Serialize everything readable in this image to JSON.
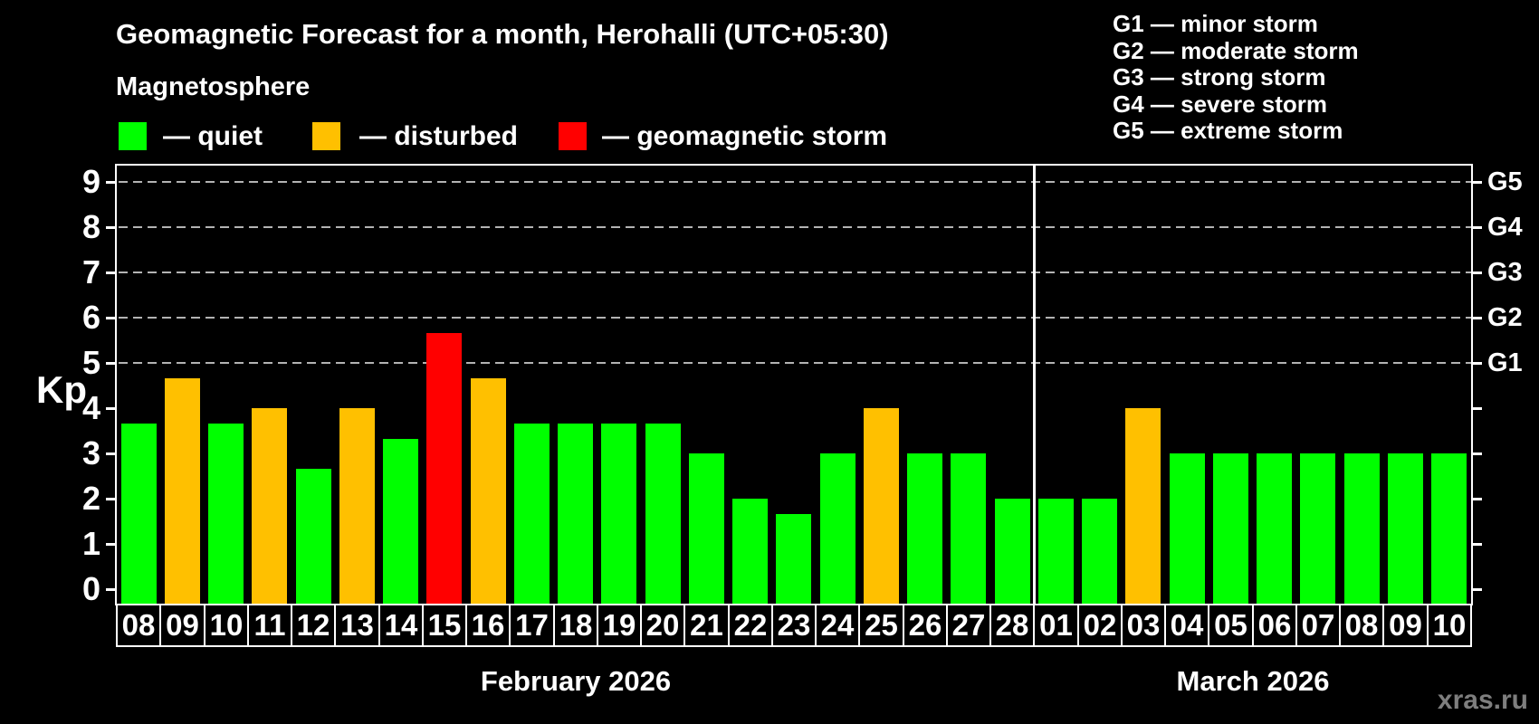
{
  "header": {
    "title": "Geomagnetic Forecast for a month, Herohalli (UTC+05:30)",
    "subtitle": "Magnetosphere"
  },
  "legend": {
    "items": [
      {
        "key": "quiet",
        "label": "— quiet",
        "color": "#00ff00"
      },
      {
        "key": "disturbed",
        "label": "— disturbed",
        "color": "#ffc000"
      },
      {
        "key": "storm",
        "label": "— geomagnetic storm",
        "color": "#ff0000"
      }
    ]
  },
  "storm_scale_legend": [
    "G1 — minor storm",
    "G2 — moderate storm",
    "G3 — strong storm",
    "G4 — severe storm",
    "G5 — extreme storm"
  ],
  "watermark": "xras.ru",
  "chart_data": {
    "type": "bar",
    "title": "Geomagnetic Forecast for a month, Herohalli (UTC+05:30)",
    "ylabel": "Kp",
    "ylim": [
      0,
      9
    ],
    "y_ticks": [
      0,
      1,
      2,
      3,
      4,
      5,
      6,
      7,
      8,
      9
    ],
    "gridlines_kp": [
      5,
      6,
      7,
      8,
      9
    ],
    "grid": "dashed",
    "legend_position": "top",
    "right_axis_labels": [
      {
        "kp": 5,
        "label": "G1"
      },
      {
        "kp": 6,
        "label": "G2"
      },
      {
        "kp": 7,
        "label": "G3"
      },
      {
        "kp": 8,
        "label": "G4"
      },
      {
        "kp": 9,
        "label": "G5"
      }
    ],
    "status_colors": {
      "quiet": "#00ff00",
      "disturbed": "#ffc000",
      "storm": "#ff0000"
    },
    "months": [
      {
        "label": "February 2026",
        "days": [
          {
            "day": "08",
            "kp": 3.67,
            "status": "quiet"
          },
          {
            "day": "09",
            "kp": 4.67,
            "status": "disturbed"
          },
          {
            "day": "10",
            "kp": 3.67,
            "status": "quiet"
          },
          {
            "day": "11",
            "kp": 4.0,
            "status": "disturbed"
          },
          {
            "day": "12",
            "kp": 2.67,
            "status": "quiet"
          },
          {
            "day": "13",
            "kp": 4.0,
            "status": "disturbed"
          },
          {
            "day": "14",
            "kp": 3.33,
            "status": "quiet"
          },
          {
            "day": "15",
            "kp": 5.67,
            "status": "storm"
          },
          {
            "day": "16",
            "kp": 4.67,
            "status": "disturbed"
          },
          {
            "day": "17",
            "kp": 3.67,
            "status": "quiet"
          },
          {
            "day": "18",
            "kp": 3.67,
            "status": "quiet"
          },
          {
            "day": "19",
            "kp": 3.67,
            "status": "quiet"
          },
          {
            "day": "20",
            "kp": 3.67,
            "status": "quiet"
          },
          {
            "day": "21",
            "kp": 3.0,
            "status": "quiet"
          },
          {
            "day": "22",
            "kp": 2.0,
            "status": "quiet"
          },
          {
            "day": "23",
            "kp": 1.67,
            "status": "quiet"
          },
          {
            "day": "24",
            "kp": 3.0,
            "status": "quiet"
          },
          {
            "day": "25",
            "kp": 4.0,
            "status": "disturbed"
          },
          {
            "day": "26",
            "kp": 3.0,
            "status": "quiet"
          },
          {
            "day": "27",
            "kp": 3.0,
            "status": "quiet"
          },
          {
            "day": "28",
            "kp": 2.0,
            "status": "quiet"
          }
        ]
      },
      {
        "label": "March 2026",
        "days": [
          {
            "day": "01",
            "kp": 2.0,
            "status": "quiet"
          },
          {
            "day": "02",
            "kp": 2.0,
            "status": "quiet"
          },
          {
            "day": "03",
            "kp": 4.0,
            "status": "disturbed"
          },
          {
            "day": "04",
            "kp": 3.0,
            "status": "quiet"
          },
          {
            "day": "05",
            "kp": 3.0,
            "status": "quiet"
          },
          {
            "day": "06",
            "kp": 3.0,
            "status": "quiet"
          },
          {
            "day": "07",
            "kp": 3.0,
            "status": "quiet"
          },
          {
            "day": "08",
            "kp": 3.0,
            "status": "quiet"
          },
          {
            "day": "09",
            "kp": 3.0,
            "status": "quiet"
          },
          {
            "day": "10",
            "kp": 3.0,
            "status": "quiet"
          }
        ]
      }
    ]
  }
}
